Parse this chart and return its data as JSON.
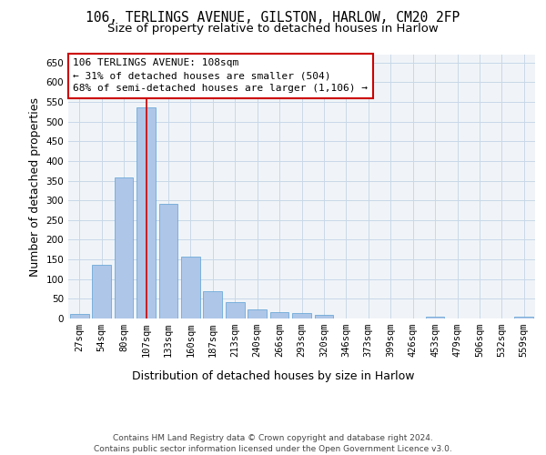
{
  "title_line1": "106, TERLINGS AVENUE, GILSTON, HARLOW, CM20 2FP",
  "title_line2": "Size of property relative to detached houses in Harlow",
  "xlabel": "Distribution of detached houses by size in Harlow",
  "ylabel": "Number of detached properties",
  "categories": [
    "27sqm",
    "54sqm",
    "80sqm",
    "107sqm",
    "133sqm",
    "160sqm",
    "187sqm",
    "213sqm",
    "240sqm",
    "266sqm",
    "293sqm",
    "320sqm",
    "346sqm",
    "373sqm",
    "399sqm",
    "426sqm",
    "453sqm",
    "479sqm",
    "506sqm",
    "532sqm",
    "559sqm"
  ],
  "values": [
    12,
    137,
    358,
    537,
    291,
    157,
    69,
    41,
    22,
    16,
    13,
    10,
    0,
    0,
    0,
    0,
    5,
    0,
    0,
    0,
    5
  ],
  "bar_color": "#aec6e8",
  "bar_edge_color": "#5a9fd4",
  "highlight_index": 3,
  "highlight_line_color": "#cc0000",
  "annotation_text": "106 TERLINGS AVENUE: 108sqm\n← 31% of detached houses are smaller (504)\n68% of semi-detached houses are larger (1,106) →",
  "annotation_box_color": "#ffffff",
  "annotation_box_edge_color": "#cc0000",
  "ylim": [
    0,
    670
  ],
  "yticks": [
    0,
    50,
    100,
    150,
    200,
    250,
    300,
    350,
    400,
    450,
    500,
    550,
    600,
    650
  ],
  "grid_color": "#c8d8e8",
  "background_color": "#f0f4f8",
  "footer_text": "Contains HM Land Registry data © Crown copyright and database right 2024.\nContains public sector information licensed under the Open Government Licence v3.0.",
  "title_fontsize": 10.5,
  "subtitle_fontsize": 9.5,
  "tick_fontsize": 7.5,
  "label_fontsize": 9,
  "annotation_fontsize": 8,
  "footer_fontsize": 6.5
}
